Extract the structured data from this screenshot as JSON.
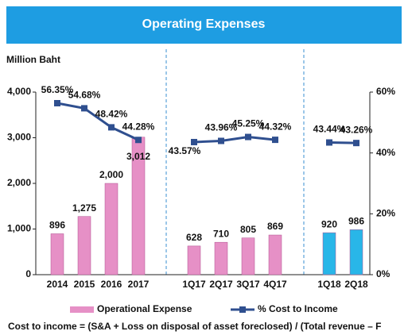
{
  "chart_data": {
    "type": "bar-line",
    "title": "Operating Expenses",
    "y_label": "Million Baht",
    "footnote": "Cost to income = (S&A + Loss on disposal of asset foreclosed) / (Total revenue – F",
    "categories": [
      "2014",
      "2015",
      "2016",
      "2017",
      "1Q17",
      "2Q17",
      "3Q17",
      "4Q17",
      "1Q18",
      "2Q18"
    ],
    "series": [
      {
        "name": "Operational Expense",
        "type": "bar",
        "color": "#e690c6",
        "colors": [
          "#e690c6",
          "#e690c6",
          "#e690c6",
          "#e690c6",
          "#e690c6",
          "#e690c6",
          "#e690c6",
          "#e690c6",
          "#29b6e8",
          "#29b6e8"
        ],
        "values": [
          896,
          1275,
          2000,
          3012,
          628,
          710,
          805,
          869,
          920,
          986
        ],
        "value_labels": [
          "896",
          "1,275",
          "2,000",
          "3,012",
          "628",
          "710",
          "805",
          "869",
          "920",
          "986"
        ]
      },
      {
        "name": "% Cost to Income",
        "type": "line",
        "axis": "y2",
        "color": "#2f4f8f",
        "values": [
          56.35,
          54.68,
          48.42,
          44.28,
          43.57,
          43.96,
          45.25,
          44.32,
          43.44,
          43.26
        ],
        "value_labels": [
          "56.35%",
          "54.68%",
          "48.42%",
          "44.28%",
          "43.57%",
          "43.96%",
          "45.25%",
          "44.32%",
          "43.44%",
          "43.26%"
        ]
      }
    ],
    "ylim": [
      0,
      4000
    ],
    "yticks": [
      0,
      {
        "value": 1000,
        "label": "1,000"
      },
      {
        "value": 2000,
        "label": "2,000"
      },
      {
        "value": 3000,
        "label": "3,000"
      },
      {
        "value": 4000,
        "label": "4,000"
      }
    ],
    "y2lim": [
      0,
      60
    ],
    "y2ticks": [
      {
        "value": 0,
        "label": "0%"
      },
      {
        "value": 20,
        "label": "20%"
      },
      {
        "value": 40,
        "label": "40%"
      },
      {
        "value": 60,
        "label": "60%"
      }
    ],
    "grid": false
  }
}
